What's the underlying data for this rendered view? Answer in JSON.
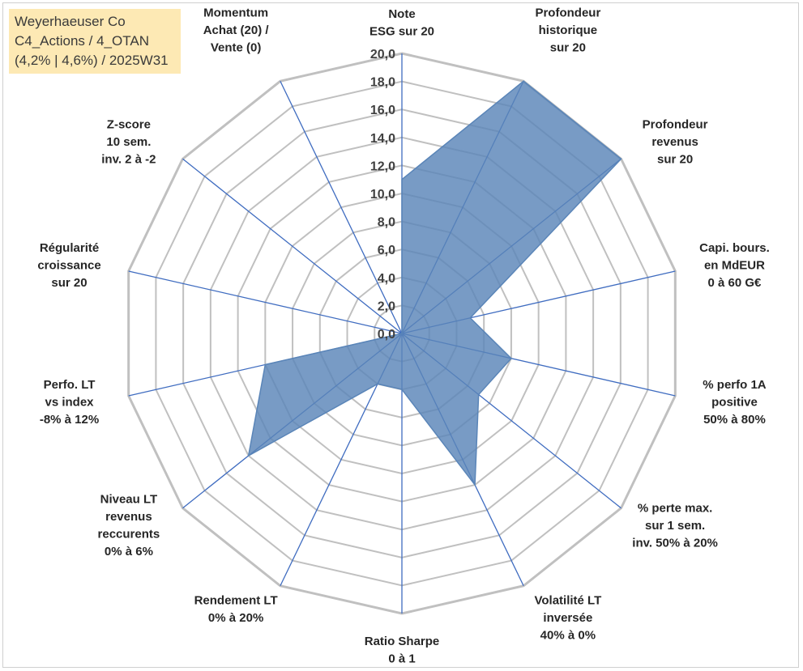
{
  "title_box": {
    "line1": "Weyerhaeuser Co",
    "line2": "C4_Actions / 4_OTAN",
    "line3": "(4,2% | 4,6%) / 2025W31"
  },
  "colors": {
    "grid": "#c0c0c0",
    "spoke": "#3f6cc0",
    "fill": "#5a85b8",
    "fill_opacity": "0.82",
    "title_bg": "#fde9b4"
  },
  "chart_data": {
    "type": "radar",
    "rmin": 0,
    "rmax": 20,
    "ticks": [
      "0,0",
      "2,0",
      "4,0",
      "6,0",
      "8,0",
      "10,0",
      "12,0",
      "14,0",
      "16,0",
      "18,0",
      "20,0"
    ],
    "axes": [
      {
        "label": [
          "Note",
          "ESG sur 20"
        ],
        "value": 11.0
      },
      {
        "label": [
          "Profondeur",
          "historique",
          "sur 20"
        ],
        "value": 20.0
      },
      {
        "label": [
          "Profondeur",
          "revenus",
          "sur 20"
        ],
        "value": 20.0
      },
      {
        "label": [
          "Capi. bours.",
          "en MdEUR",
          "0 à 60 G€"
        ],
        "value": 5.0
      },
      {
        "label": [
          "% perfo 1A",
          "positive",
          "50% à 80%"
        ],
        "value": 8.0
      },
      {
        "label": [
          "% perte max.",
          "sur 1 sem.",
          "inv. 50% à 20%"
        ],
        "value": 7.0
      },
      {
        "label": [
          "Volatilité LT",
          "inversée",
          "40% à 0%"
        ],
        "value": 12.0
      },
      {
        "label": [
          "Ratio Sharpe",
          "0 à 1"
        ],
        "value": 4.0
      },
      {
        "label": [
          "Rendement LT",
          "0% à 20%"
        ],
        "value": 4.0
      },
      {
        "label": [
          "Niveau LT",
          "revenus",
          "reccurents",
          "0% à 6%"
        ],
        "value": 14.0
      },
      {
        "label": [
          "Perfo. LT",
          "vs index",
          "-8% à 12%"
        ],
        "value": 10.0
      },
      {
        "label": [
          "Régularité",
          "croissance",
          "sur 20"
        ],
        "value": 0.0
      },
      {
        "label": [
          "Z-score",
          "10 sem.",
          "inv. 2 à -2"
        ],
        "value": 0.0
      },
      {
        "label": [
          "Momentum",
          "Achat (20) /",
          "Vente (0)"
        ],
        "value": 0.0
      }
    ]
  }
}
